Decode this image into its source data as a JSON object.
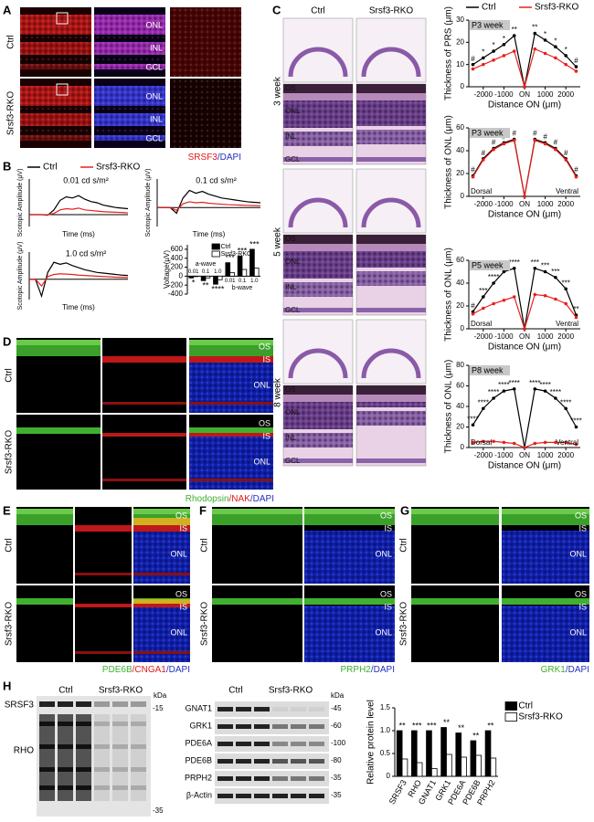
{
  "figure": {
    "A": {
      "label": "A",
      "rows": [
        "Ctrl",
        "Srsf3-RKO"
      ],
      "layers": [
        "ONL",
        "INL",
        "GCL",
        "ONL",
        "INL",
        "GCL"
      ],
      "stain": [
        "SRSF3",
        "/DAPI"
      ]
    },
    "B": {
      "label": "B"
    },
    "C": {
      "label": "C",
      "columns": [
        "Ctrl",
        "Srsf3-RKO"
      ],
      "ages": [
        "3 week",
        "5 week",
        "8 week"
      ],
      "layers": [
        [
          "OS",
          "ONL",
          "INL",
          "GCL"
        ],
        [
          "OS",
          "ONL",
          "INL",
          "GCL"
        ],
        [
          "OS",
          "ONL",
          "INL",
          "GCL"
        ]
      ]
    },
    "D": {
      "label": "D",
      "rows": [
        "Ctrl",
        "Srsf3-RKO"
      ],
      "layers": [
        "OS",
        "IS",
        "ONL",
        "OS",
        "IS",
        "ONL"
      ],
      "stain": [
        "Rhodopsin",
        "/NAK",
        "/DAPI"
      ]
    },
    "E": {
      "label": "E",
      "rows": [
        "Ctrl",
        "Srsf3-RKO"
      ],
      "layers": [
        "OS",
        "IS",
        "ONL",
        "OS",
        "IS",
        "ONL"
      ],
      "stain": [
        "PDE6B",
        "/CNGA1",
        "/DAPI"
      ]
    },
    "F": {
      "label": "F",
      "rows": [
        "Ctrl",
        "Srsf3-RKO"
      ],
      "layers": [
        "OS",
        "IS",
        "ONL",
        "OS",
        "IS",
        "ONL"
      ],
      "stain": [
        "PRPH2",
        "/DAPI"
      ]
    },
    "G": {
      "label": "G",
      "rows": [
        "Ctrl",
        "Srsf3-RKO"
      ],
      "layers": [
        "OS",
        "IS",
        "ONL",
        "OS",
        "IS",
        "ONL"
      ],
      "stain": [
        "GRK1",
        "/DAPI"
      ]
    },
    "H": {
      "label": "H",
      "blot1": {
        "columns": [
          "Ctrl",
          "Srsf3-RKO"
        ],
        "proteins": [
          "SRSF3",
          "RHO"
        ],
        "unit": "kDa",
        "markers": [
          "-15",
          "-35"
        ]
      },
      "blot2": {
        "columns": [
          "Ctrl",
          "Srsf3-RKO"
        ],
        "proteins": [
          "GNAT1",
          "GRK1",
          "PDE6A",
          "PDE6B",
          "PRPH2",
          "β-Actin"
        ],
        "unit": "kDa",
        "markers": [
          "-45",
          "-60",
          "-100",
          "-80",
          "-35",
          "-35"
        ]
      }
    }
  },
  "chart_data": [
    {
      "type": "line",
      "title": "0.01 cd s/m²",
      "xlabel": "Time (ms)",
      "ylabel": "Scotopic Amplitude (μV)",
      "x": [
        0,
        25,
        50,
        75,
        100,
        125,
        150,
        175,
        200,
        225,
        250,
        275,
        300,
        325,
        350,
        375,
        400
      ],
      "xlim": [
        0,
        400
      ],
      "ylim": [
        -100,
        300
      ],
      "series": [
        {
          "name": "Ctrl",
          "color": "#000000",
          "values": [
            0,
            0,
            0,
            -5,
            40,
            120,
            150,
            140,
            160,
            130,
            110,
            100,
            80,
            70,
            60,
            55,
            50
          ]
        },
        {
          "name": "Srsf3-RKO",
          "color": "#e8201c",
          "values": [
            0,
            0,
            0,
            -2,
            10,
            40,
            50,
            45,
            55,
            40,
            35,
            30,
            25,
            22,
            20,
            18,
            15
          ]
        }
      ]
    },
    {
      "type": "line",
      "title": "0.1 cd s/m²",
      "xlabel": "Time (ms)",
      "ylabel": "Scotopic Amplitude (μV)",
      "x": [
        0,
        25,
        50,
        75,
        100,
        125,
        150,
        175,
        200,
        225,
        250,
        275,
        300,
        325,
        350,
        375,
        400
      ],
      "xlim": [
        0,
        400
      ],
      "ylim": [
        -200,
        300
      ],
      "series": [
        {
          "color": "#000000",
          "values": [
            0,
            0,
            0,
            -60,
            100,
            180,
            150,
            170,
            140,
            120,
            100,
            90,
            80,
            70,
            60,
            55,
            50
          ]
        },
        {
          "color": "#e8201c",
          "values": [
            0,
            0,
            0,
            -30,
            40,
            60,
            50,
            55,
            45,
            40,
            35,
            30,
            28,
            25,
            22,
            20,
            18
          ]
        }
      ]
    },
    {
      "type": "line",
      "title": "1.0 cd s/m²",
      "xlabel": "Time (ms)",
      "ylabel": "Scotopic Amplitude (μV)",
      "x": [
        0,
        25,
        50,
        75,
        100,
        125,
        150,
        175,
        200,
        225,
        250,
        275,
        300,
        325,
        350,
        375,
        400
      ],
      "xlim": [
        0,
        400
      ],
      "ylim": [
        -300,
        400
      ],
      "series": [
        {
          "color": "#000000",
          "values": [
            0,
            0,
            -250,
            100,
            250,
            220,
            240,
            200,
            170,
            140,
            120,
            100,
            90,
            80,
            70,
            60,
            55
          ]
        },
        {
          "color": "#e8201c",
          "values": [
            0,
            0,
            -100,
            40,
            70,
            80,
            75,
            70,
            60,
            55,
            50,
            45,
            40,
            35,
            30,
            28,
            25
          ]
        }
      ]
    },
    {
      "type": "bar",
      "ylabel": "Voltage(μV)",
      "categories": [
        "0.01",
        "0.1",
        "1.0",
        "0.01",
        "0.1",
        "1.0"
      ],
      "annotations": [
        "a-wave",
        "b-wave"
      ],
      "ylim": [
        -400,
        700
      ],
      "yticks": [
        -400,
        -200,
        0,
        200,
        400,
        600
      ],
      "series": [
        {
          "name": "Ctrl",
          "color": "#000000",
          "values": [
            -40,
            -100,
            -180,
            300,
            450,
            600
          ]
        },
        {
          "name": "Srsf3-RKO",
          "color": "#ffffff",
          "values": [
            -10,
            -40,
            -80,
            80,
            150,
            180
          ]
        }
      ],
      "significance": [
        "*",
        "**",
        "****",
        "***",
        "***",
        "***"
      ]
    },
    {
      "type": "line",
      "title": "P3 week",
      "xlabel": "Distance ON (μm)",
      "ylabel": "Thickness of PRS (μm)",
      "markers": true,
      "x": [
        -2500,
        -2000,
        -1500,
        -1000,
        -500,
        0,
        500,
        1000,
        1500,
        2000,
        2500
      ],
      "xlim": [
        -2700,
        2700
      ],
      "ylim": [
        0,
        30
      ],
      "yticks": [
        0,
        10,
        20,
        30
      ],
      "xticks": [
        -2000,
        -1000,
        {
          "value": 0,
          "label": "ON"
        },
        1000,
        2000
      ],
      "series": [
        {
          "name": "Ctrl",
          "color": "#000000",
          "values": [
            10,
            13,
            16,
            19,
            23,
            0,
            24,
            21,
            18,
            14,
            9
          ]
        },
        {
          "name": "Srsf3-RKO",
          "color": "#e8201c",
          "values": [
            8,
            10,
            12,
            14,
            16,
            0,
            17,
            15,
            13,
            10,
            7
          ]
        }
      ],
      "significance": [
        "#",
        "*",
        "*",
        "*",
        "**",
        null,
        "**",
        "*",
        "*",
        "*",
        "#"
      ]
    },
    {
      "type": "line",
      "title": "P3 week",
      "xlabel": "Distance ON (μm)",
      "ylabel": "Thickness of ONL (μm)",
      "markers": true,
      "annotations": [
        "Dorsal",
        "Ventral"
      ],
      "x": [
        -2500,
        -2000,
        -1500,
        -1000,
        -500,
        0,
        500,
        1000,
        1500,
        2000,
        2500
      ],
      "xlim": [
        -2700,
        2700
      ],
      "ylim": [
        0,
        60
      ],
      "yticks": [
        0,
        20,
        40,
        60
      ],
      "xticks": [
        -2000,
        -1000,
        {
          "value": 0,
          "label": "ON"
        },
        1000,
        2000
      ],
      "series": [
        {
          "color": "#000000",
          "values": [
            18,
            33,
            42,
            47,
            50,
            0,
            50,
            47,
            42,
            33,
            18
          ]
        },
        {
          "color": "#e8201c",
          "values": [
            17,
            32,
            41,
            46,
            49,
            0,
            49,
            46,
            41,
            32,
            17
          ]
        }
      ],
      "significance": [
        "#",
        "#",
        "#",
        "#",
        "#",
        null,
        "#",
        "#",
        "#",
        "#",
        "#"
      ]
    },
    {
      "type": "line",
      "title": "P5 week",
      "xlabel": "Distance ON (μm)",
      "ylabel": "Thickness of ONL (μm)",
      "markers": true,
      "annotations": [
        "Dorsal",
        "Ventral"
      ],
      "x": [
        -2500,
        -2000,
        -1500,
        -1000,
        -500,
        0,
        500,
        1000,
        1500,
        2000,
        2500
      ],
      "xlim": [
        -2700,
        2700
      ],
      "ylim": [
        0,
        60
      ],
      "yticks": [
        0,
        20,
        40,
        60
      ],
      "xticks": [
        -2000,
        -1000,
        {
          "value": 0,
          "label": "ON"
        },
        1000,
        2000
      ],
      "series": [
        {
          "color": "#000000",
          "values": [
            15,
            28,
            40,
            50,
            53,
            0,
            53,
            50,
            45,
            35,
            12
          ]
        },
        {
          "color": "#e8201c",
          "values": [
            13,
            18,
            22,
            25,
            28,
            0,
            30,
            29,
            26,
            22,
            10
          ]
        }
      ],
      "significance": [
        "#",
        "***",
        "****",
        "****",
        "****",
        null,
        "***",
        "***",
        "***",
        "***",
        "**"
      ]
    },
    {
      "type": "line",
      "title": "P8 week",
      "xlabel": "Distance ON (μm)",
      "ylabel": "Thickness of ONL (μm)",
      "markers": true,
      "annotations": [
        "Dorsal",
        "Ventral"
      ],
      "x": [
        -2500,
        -2000,
        -1500,
        -1000,
        -500,
        0,
        500,
        1000,
        1500,
        2000,
        2500
      ],
      "xlim": [
        -2700,
        2700
      ],
      "ylim": [
        0,
        80
      ],
      "yticks": [
        0,
        20,
        40,
        60,
        80
      ],
      "xticks": [
        -2000,
        -1000,
        {
          "value": 0,
          "label": "ON"
        },
        1000,
        2000
      ],
      "series": [
        {
          "color": "#000000",
          "values": [
            22,
            38,
            48,
            55,
            57,
            0,
            57,
            55,
            48,
            38,
            20
          ]
        },
        {
          "color": "#e8201c",
          "values": [
            5,
            6,
            6,
            5,
            4,
            0,
            4,
            5,
            5,
            5,
            3
          ]
        }
      ],
      "significance": [
        "****",
        "****",
        "****",
        "****",
        "****",
        null,
        "****",
        "****",
        "****",
        "****",
        "****"
      ]
    },
    {
      "type": "bar",
      "ylabel": "Relative protein level",
      "categories": [
        "SRSF3",
        "RHO",
        "GNAT1",
        "GRK1",
        "PDE6A",
        "PDE6B",
        "PRPH2"
      ],
      "ylim": [
        0,
        1.5
      ],
      "yticks": [
        0,
        0.5,
        {
          "value": 1,
          "label": "1.0"
        },
        1.5
      ],
      "series": [
        {
          "name": "Ctrl",
          "color": "#000000",
          "values": [
            1.0,
            1.0,
            1.0,
            1.07,
            0.95,
            0.78,
            1.0
          ]
        },
        {
          "name": "Srsf3-RKO",
          "color": "#ffffff",
          "values": [
            0.38,
            0.3,
            0.17,
            0.48,
            0.42,
            0.46,
            0.4
          ]
        }
      ],
      "significance": [
        "**",
        "***",
        "***",
        "**",
        "**",
        "**",
        "**"
      ]
    }
  ]
}
